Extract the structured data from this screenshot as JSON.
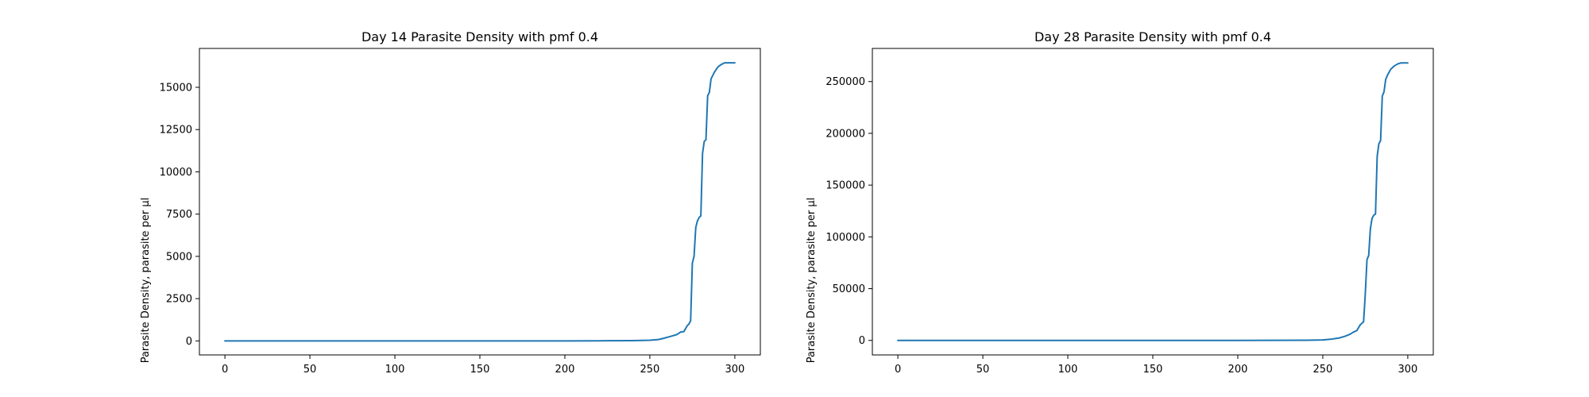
{
  "colors": {
    "series": "#1f77b4",
    "background": "#ffffff",
    "axes": "#000000"
  },
  "chart_data": [
    {
      "type": "line",
      "title": "Day 14 Parasite Density with pmf 0.4",
      "xlabel": "",
      "ylabel": "Parasite Density, parasite per µl",
      "xlim": [
        -15,
        315
      ],
      "ylim": [
        -830,
        17300
      ],
      "xticks": [
        0,
        50,
        100,
        150,
        200,
        250,
        300
      ],
      "yticks": [
        0,
        2500,
        5000,
        7500,
        10000,
        12500,
        15000
      ],
      "grid": false,
      "series": [
        {
          "x": [
            0,
            200,
            220,
            240,
            250,
            255,
            258,
            262,
            266,
            268,
            270,
            272,
            273,
            274,
            275,
            276,
            277,
            278,
            279,
            280,
            281,
            282,
            283,
            284,
            285,
            286,
            287,
            288,
            290,
            292,
            294,
            296,
            298,
            300
          ],
          "y": [
            0,
            0,
            5,
            15,
            40,
            80,
            150,
            260,
            380,
            520,
            550,
            900,
            1000,
            1200,
            4600,
            5000,
            6700,
            7100,
            7300,
            7400,
            11100,
            11800,
            11900,
            14500,
            14700,
            15500,
            15700,
            15900,
            16200,
            16350,
            16450,
            16450,
            16450,
            16450
          ]
        }
      ]
    },
    {
      "type": "line",
      "title": "Day 28 Parasite Density with pmf 0.4",
      "xlabel": "",
      "ylabel": "Parasite Density, parasite per µl",
      "xlim": [
        -15,
        315
      ],
      "ylim": [
        -14000,
        282000
      ],
      "xticks": [
        0,
        50,
        100,
        150,
        200,
        250,
        300
      ],
      "yticks": [
        0,
        50000,
        100000,
        150000,
        200000,
        250000
      ],
      "grid": false,
      "series": [
        {
          "x": [
            0,
            200,
            220,
            240,
            250,
            255,
            260,
            263,
            266,
            268,
            270,
            272,
            274,
            275,
            276,
            277,
            278,
            279,
            280,
            281,
            282,
            283,
            284,
            285,
            286,
            287,
            288,
            290,
            292,
            294,
            296,
            298,
            300
          ],
          "y": [
            0,
            0,
            50,
            150,
            500,
            1200,
            2500,
            4000,
            6000,
            8000,
            9500,
            15000,
            18000,
            45000,
            78000,
            82000,
            108000,
            118000,
            121000,
            122000,
            178000,
            190000,
            193000,
            236000,
            240000,
            252000,
            256000,
            262000,
            265000,
            267000,
            268000,
            268000,
            268000
          ]
        }
      ]
    }
  ]
}
